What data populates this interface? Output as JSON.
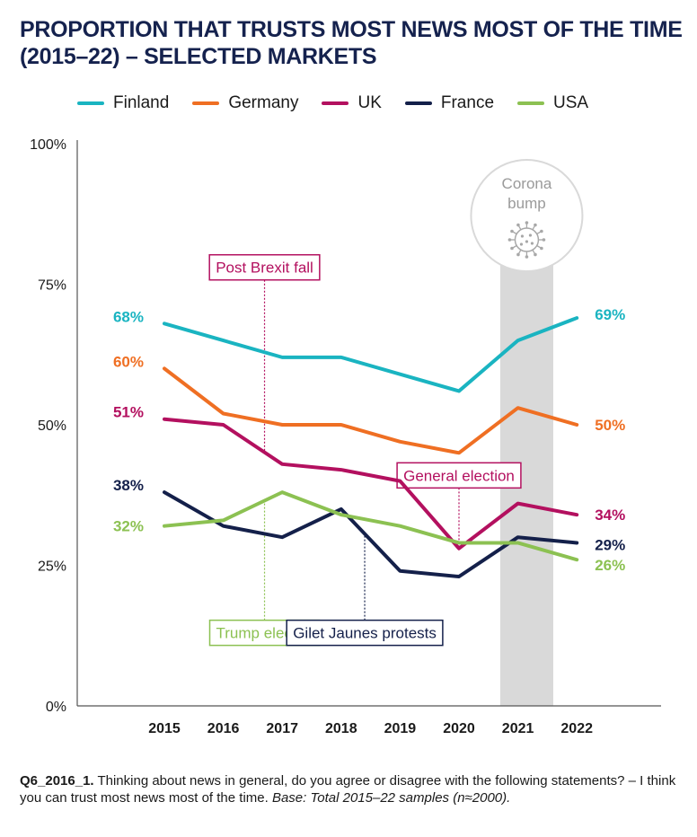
{
  "header": {
    "title": "PROPORTION THAT TRUSTS MOST NEWS MOST OF THE TIME (2015–22) – SELECTED MARKETS"
  },
  "colors": {
    "Finland": "#1ab4c1",
    "Germany": "#ef6f23",
    "UK": "#b3105f",
    "France": "#14204a",
    "USA": "#8cc152",
    "highlight_band": "#d9d9d9",
    "axis": "#555555"
  },
  "chart_data": {
    "type": "line",
    "x": [
      "2015",
      "2016",
      "2017",
      "2018",
      "2019",
      "2020",
      "2021",
      "2022"
    ],
    "ylim": [
      0,
      100
    ],
    "yticks": [
      0,
      25,
      50,
      75,
      100
    ],
    "ytick_labels": [
      "0%",
      "25%",
      "50%",
      "75%",
      "100%"
    ],
    "grid": false,
    "legend_position": "top",
    "series": [
      {
        "name": "Finland",
        "values": [
          68,
          65,
          62,
          62,
          59,
          56,
          65,
          69
        ],
        "start_label": "68%",
        "end_label": "69%"
      },
      {
        "name": "Germany",
        "values": [
          60,
          52,
          50,
          50,
          47,
          45,
          53,
          50
        ],
        "start_label": "60%",
        "end_label": "50%"
      },
      {
        "name": "UK",
        "values": [
          51,
          50,
          43,
          42,
          40,
          28,
          36,
          34
        ],
        "start_label": "51%",
        "end_label": "34%"
      },
      {
        "name": "France",
        "values": [
          38,
          32,
          30,
          35,
          24,
          23,
          30,
          29
        ],
        "start_label": "38%",
        "end_label": "29%"
      },
      {
        "name": "USA",
        "values": [
          32,
          33,
          38,
          34,
          32,
          29,
          29,
          26
        ],
        "start_label": "32%",
        "end_label": "26%"
      }
    ],
    "highlight": {
      "label_line1": "Corona",
      "label_line2": "bump",
      "x_from": 2020.7,
      "x_to": 2021.6
    },
    "annotations": [
      {
        "text": "Post Brexit fall",
        "series": "UK",
        "x": 2016.7,
        "label_y": 78,
        "color_key": "UK"
      },
      {
        "text": "General election",
        "series": "UK",
        "x": 2020,
        "label_y": 41,
        "color_key": "UK"
      },
      {
        "text": "Trump elected",
        "series": "USA",
        "x": 2016.7,
        "label_y": 13,
        "color_key": "USA"
      },
      {
        "text": "Gilet Jaunes protests",
        "series": "France",
        "x": 2018.4,
        "label_y": 13,
        "color_key": "France"
      }
    ]
  },
  "footnote": {
    "code": "Q6_2016_1.",
    "text": " Thinking about news in general, do you agree or disagree with the following statements? – I think you can trust most news most of the time. ",
    "base": "Base: Total 2015–22 samples (n≈2000)."
  }
}
